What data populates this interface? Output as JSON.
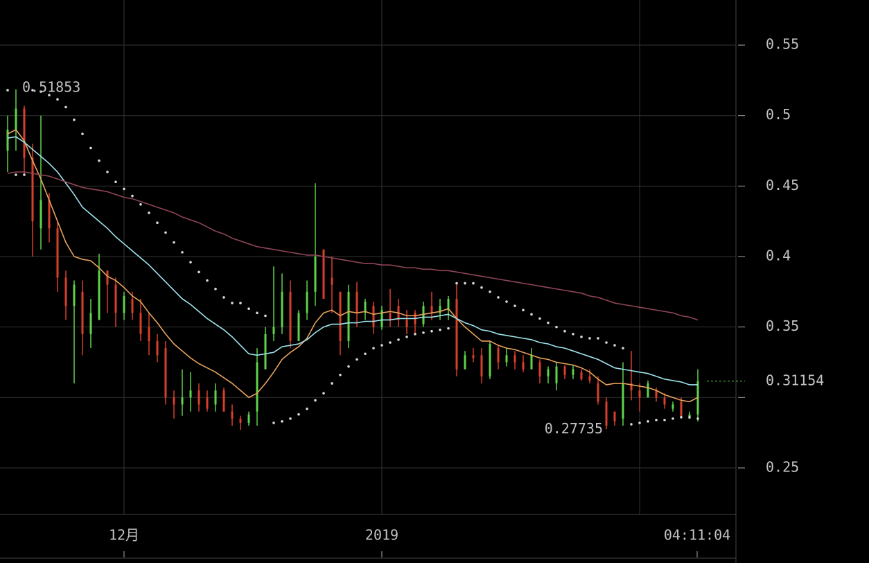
{
  "chart_data": {
    "type": "candlestick",
    "categories": [
      null,
      null,
      null,
      null,
      null,
      null,
      null,
      null,
      null,
      null,
      null,
      null,
      null,
      null,
      "12月",
      null,
      null,
      null,
      null,
      null,
      null,
      null,
      null,
      null,
      null,
      null,
      null,
      null,
      null,
      null,
      null,
      null,
      null,
      null,
      null,
      null,
      null,
      null,
      null,
      null,
      null,
      null,
      null,
      null,
      null,
      "2019",
      null,
      null,
      null,
      null,
      null,
      null,
      null,
      null,
      null,
      null,
      null,
      null,
      null,
      null,
      null,
      null,
      null,
      null,
      null,
      null,
      null,
      null,
      null,
      null,
      null,
      null,
      null,
      null,
      null,
      null,
      null,
      null,
      null,
      null,
      null,
      null,
      null,
      null
    ],
    "open": [
      0.475,
      0.49,
      0.505,
      0.47,
      0.42,
      0.44,
      0.42,
      0.385,
      0.365,
      0.375,
      0.345,
      0.355,
      0.39,
      0.38,
      0.36,
      0.37,
      0.36,
      0.35,
      0.34,
      0.335,
      0.3,
      0.295,
      0.3,
      0.305,
      0.3,
      0.295,
      0.305,
      0.29,
      0.285,
      0.282,
      0.29,
      0.32,
      0.345,
      0.35,
      0.375,
      0.34,
      0.36,
      0.375,
      0.405,
      0.385,
      0.375,
      0.34,
      0.375,
      0.36,
      0.365,
      0.35,
      0.36,
      0.365,
      0.355,
      0.36,
      0.352,
      0.365,
      0.36,
      0.362,
      0.37,
      0.32,
      0.33,
      0.33,
      0.315,
      0.335,
      0.325,
      0.33,
      0.325,
      0.32,
      0.325,
      0.315,
      0.31,
      0.322,
      0.316,
      0.318,
      0.315,
      0.31,
      0.297,
      0.29,
      0.285,
      0.31,
      0.305,
      0.3,
      0.305,
      0.3,
      0.292,
      0.297,
      0.285,
      0.288
    ],
    "high": [
      0.5,
      0.51853,
      0.507,
      0.48,
      0.5,
      0.445,
      0.425,
      0.39,
      0.383,
      0.383,
      0.37,
      0.402,
      0.39,
      0.385,
      0.375,
      0.375,
      0.37,
      0.36,
      0.345,
      0.34,
      0.305,
      0.32,
      0.318,
      0.31,
      0.305,
      0.31,
      0.307,
      0.295,
      0.287,
      0.29,
      0.335,
      0.35,
      0.393,
      0.388,
      0.383,
      0.362,
      0.383,
      0.452,
      0.405,
      0.4,
      0.375,
      0.38,
      0.382,
      0.37,
      0.368,
      0.365,
      0.377,
      0.37,
      0.362,
      0.362,
      0.368,
      0.375,
      0.37,
      0.372,
      0.38,
      0.333,
      0.335,
      0.335,
      0.34,
      0.337,
      0.335,
      0.333,
      0.33,
      0.335,
      0.327,
      0.322,
      0.325,
      0.323,
      0.323,
      0.32,
      0.32,
      0.315,
      0.3,
      0.29,
      0.325,
      0.333,
      0.31,
      0.312,
      0.307,
      0.303,
      0.297,
      0.3,
      0.29,
      0.32
    ],
    "low": [
      0.46,
      0.475,
      0.458,
      0.4,
      0.405,
      0.41,
      0.375,
      0.355,
      0.31,
      0.33,
      0.335,
      0.355,
      0.36,
      0.35,
      0.355,
      0.355,
      0.34,
      0.33,
      0.325,
      0.295,
      0.285,
      0.287,
      0.29,
      0.29,
      0.29,
      0.29,
      0.29,
      0.28,
      0.277,
      0.28,
      0.28,
      0.32,
      0.34,
      0.345,
      0.335,
      0.34,
      0.355,
      0.365,
      0.37,
      0.36,
      0.33,
      0.335,
      0.35,
      0.355,
      0.345,
      0.348,
      0.35,
      0.35,
      0.345,
      0.345,
      0.35,
      0.355,
      0.355,
      0.355,
      0.315,
      0.32,
      0.325,
      0.31,
      0.313,
      0.32,
      0.322,
      0.32,
      0.318,
      0.32,
      0.31,
      0.31,
      0.305,
      0.313,
      0.313,
      0.312,
      0.31,
      0.295,
      0.27735,
      0.28,
      0.28,
      0.298,
      0.29,
      0.3,
      0.297,
      0.292,
      0.29,
      0.285,
      0.285,
      0.283
    ],
    "close": [
      0.49,
      0.505,
      0.47,
      0.425,
      0.44,
      0.42,
      0.385,
      0.365,
      0.38,
      0.345,
      0.36,
      0.39,
      0.38,
      0.36,
      0.372,
      0.36,
      0.345,
      0.34,
      0.33,
      0.3,
      0.295,
      0.3,
      0.305,
      0.295,
      0.292,
      0.305,
      0.29,
      0.285,
      0.282,
      0.288,
      0.325,
      0.345,
      0.35,
      0.375,
      0.34,
      0.36,
      0.375,
      0.4,
      0.37,
      0.38,
      0.34,
      0.375,
      0.36,
      0.368,
      0.35,
      0.362,
      0.355,
      0.355,
      0.35,
      0.352,
      0.365,
      0.36,
      0.365,
      0.37,
      0.32,
      0.33,
      0.328,
      0.315,
      0.338,
      0.325,
      0.33,
      0.325,
      0.32,
      0.33,
      0.315,
      0.32,
      0.322,
      0.316,
      0.32,
      0.313,
      0.312,
      0.297,
      0.28,
      0.283,
      0.31,
      0.305,
      0.3,
      0.31,
      0.3,
      0.295,
      0.295,
      0.287,
      0.288,
      0.31154
    ],
    "up_color": "#5fd34a",
    "down_color": "#d8402e",
    "lines": [
      {
        "color": "#e8a35e",
        "values": [
          0.487,
          0.49,
          0.482,
          0.468,
          0.455,
          0.44,
          0.425,
          0.41,
          0.4,
          0.398,
          0.397,
          0.392,
          0.386,
          0.383,
          0.378,
          0.372,
          0.368,
          0.36,
          0.353,
          0.345,
          0.338,
          0.333,
          0.328,
          0.324,
          0.321,
          0.318,
          0.314,
          0.31,
          0.305,
          0.3,
          0.303,
          0.31,
          0.318,
          0.327,
          0.332,
          0.336,
          0.342,
          0.353,
          0.36,
          0.362,
          0.358,
          0.361,
          0.36,
          0.361,
          0.359,
          0.36,
          0.361,
          0.36,
          0.358,
          0.358,
          0.359,
          0.36,
          0.361,
          0.363,
          0.356,
          0.35,
          0.345,
          0.34,
          0.34,
          0.337,
          0.335,
          0.334,
          0.332,
          0.33,
          0.328,
          0.327,
          0.325,
          0.324,
          0.323,
          0.321,
          0.318,
          0.313,
          0.309,
          0.31,
          0.31,
          0.309,
          0.308,
          0.307,
          0.305,
          0.302,
          0.3,
          0.298,
          0.297,
          0.3
        ]
      },
      {
        "color": "#9fe3ee",
        "values": [
          0.484,
          0.485,
          0.481,
          0.476,
          0.471,
          0.466,
          0.46,
          0.452,
          0.444,
          0.435,
          0.43,
          0.425,
          0.42,
          0.414,
          0.409,
          0.404,
          0.399,
          0.394,
          0.388,
          0.382,
          0.376,
          0.37,
          0.366,
          0.361,
          0.356,
          0.352,
          0.348,
          0.343,
          0.337,
          0.331,
          0.33,
          0.331,
          0.332,
          0.336,
          0.337,
          0.338,
          0.341,
          0.346,
          0.35,
          0.352,
          0.352,
          0.353,
          0.353,
          0.354,
          0.354,
          0.355,
          0.355,
          0.356,
          0.356,
          0.356,
          0.357,
          0.357,
          0.358,
          0.359,
          0.356,
          0.353,
          0.351,
          0.348,
          0.347,
          0.345,
          0.344,
          0.343,
          0.342,
          0.341,
          0.339,
          0.338,
          0.336,
          0.335,
          0.333,
          0.331,
          0.329,
          0.327,
          0.324,
          0.321,
          0.32,
          0.319,
          0.318,
          0.317,
          0.315,
          0.313,
          0.312,
          0.311,
          0.309,
          0.309
        ]
      },
      {
        "color": "#8e4656",
        "values": [
          0.459,
          0.46,
          0.46,
          0.459,
          0.458,
          0.457,
          0.455,
          0.453,
          0.451,
          0.449,
          0.448,
          0.447,
          0.446,
          0.444,
          0.442,
          0.441,
          0.439,
          0.437,
          0.435,
          0.433,
          0.431,
          0.428,
          0.426,
          0.424,
          0.421,
          0.418,
          0.416,
          0.413,
          0.411,
          0.409,
          0.407,
          0.406,
          0.405,
          0.404,
          0.403,
          0.402,
          0.401,
          0.401,
          0.4,
          0.399,
          0.398,
          0.397,
          0.396,
          0.395,
          0.395,
          0.394,
          0.394,
          0.393,
          0.392,
          0.392,
          0.391,
          0.391,
          0.39,
          0.39,
          0.389,
          0.388,
          0.387,
          0.386,
          0.385,
          0.384,
          0.383,
          0.382,
          0.381,
          0.38,
          0.379,
          0.378,
          0.377,
          0.376,
          0.375,
          0.374,
          0.372,
          0.371,
          0.369,
          0.367,
          0.366,
          0.365,
          0.364,
          0.363,
          0.362,
          0.361,
          0.36,
          0.358,
          0.357,
          0.355
        ]
      }
    ],
    "sar": {
      "color": "#d8d8d8",
      "values": [
        0.518,
        0.458,
        0.458,
        0.518,
        0.517,
        0.5145,
        0.5115,
        0.506,
        0.497,
        0.487,
        0.477,
        0.468,
        0.46,
        0.453,
        0.448,
        0.443,
        0.437,
        0.431,
        0.424,
        0.417,
        0.41,
        0.403,
        0.396,
        0.389,
        0.383,
        0.377,
        0.371,
        0.367,
        0.367,
        0.363,
        0.36,
        0.358,
        0.282,
        0.283,
        0.285,
        0.288,
        0.292,
        0.298,
        0.303,
        0.31,
        0.316,
        0.322,
        0.327,
        0.331,
        0.335,
        0.337,
        0.339,
        0.341,
        0.343,
        0.345,
        0.346,
        0.347,
        0.348,
        0.349,
        0.381,
        0.381,
        0.381,
        0.378,
        0.375,
        0.371,
        0.368,
        0.365,
        0.362,
        0.359,
        0.356,
        0.353,
        0.35,
        0.347,
        0.345,
        0.343,
        0.342,
        0.342,
        0.339,
        0.337,
        0.335,
        0.281,
        0.282,
        0.283,
        0.284,
        0.284,
        0.285,
        0.286,
        0.286,
        0.285
      ]
    },
    "ylim": [
      0.217,
      0.582
    ],
    "yticks": [
      0.25,
      {
        "value": 0.3,
        "label": null
      },
      0.35,
      0.4,
      0.45,
      0.5,
      0.55
    ],
    "grid": true,
    "countdown": "04:11:04"
  }
}
